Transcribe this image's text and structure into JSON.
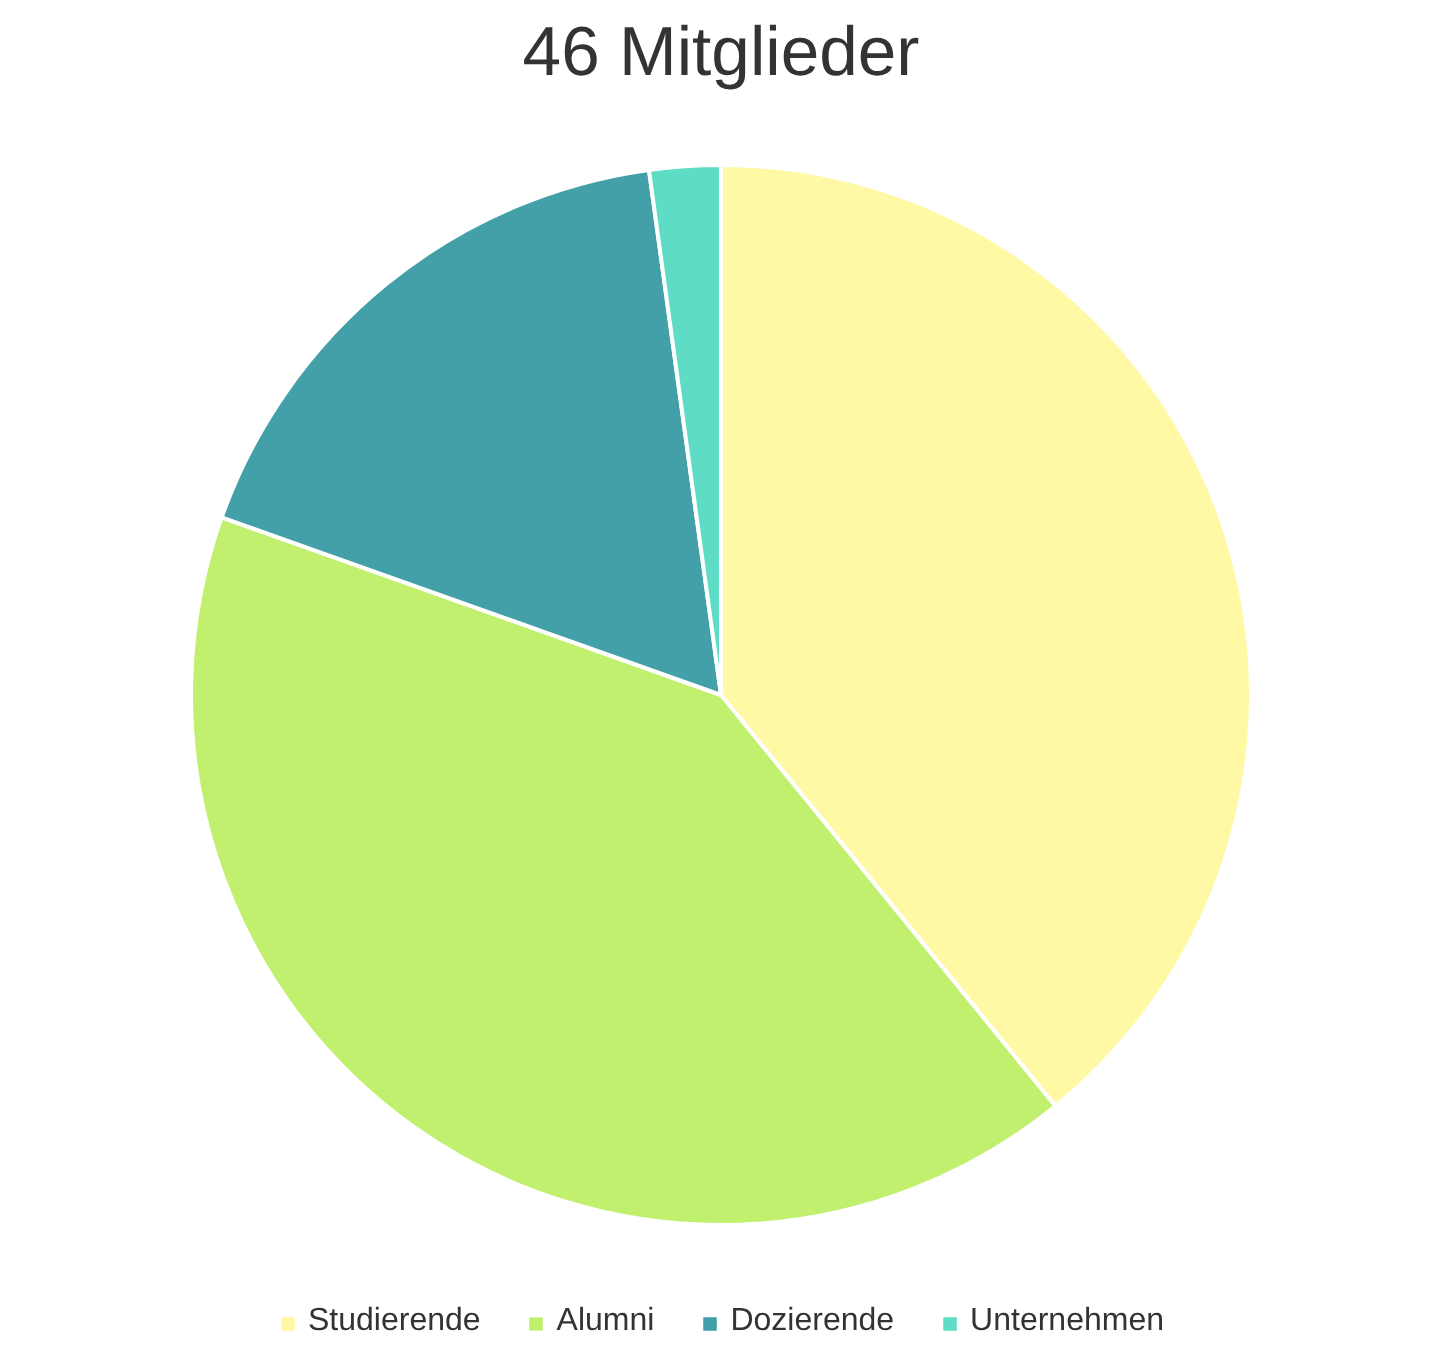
{
  "chart_data": {
    "type": "pie",
    "title": "46 Mitglieder",
    "categories": [
      "Studierende",
      "Alumni",
      "Dozierende",
      "Unternehmen"
    ],
    "values": [
      39.13,
      41.31,
      17.39,
      2.17
    ],
    "colors": [
      "#fff9a6",
      "#c1f06f",
      "#44a0a8",
      "#5fdcc6"
    ],
    "legend": "bottom"
  }
}
